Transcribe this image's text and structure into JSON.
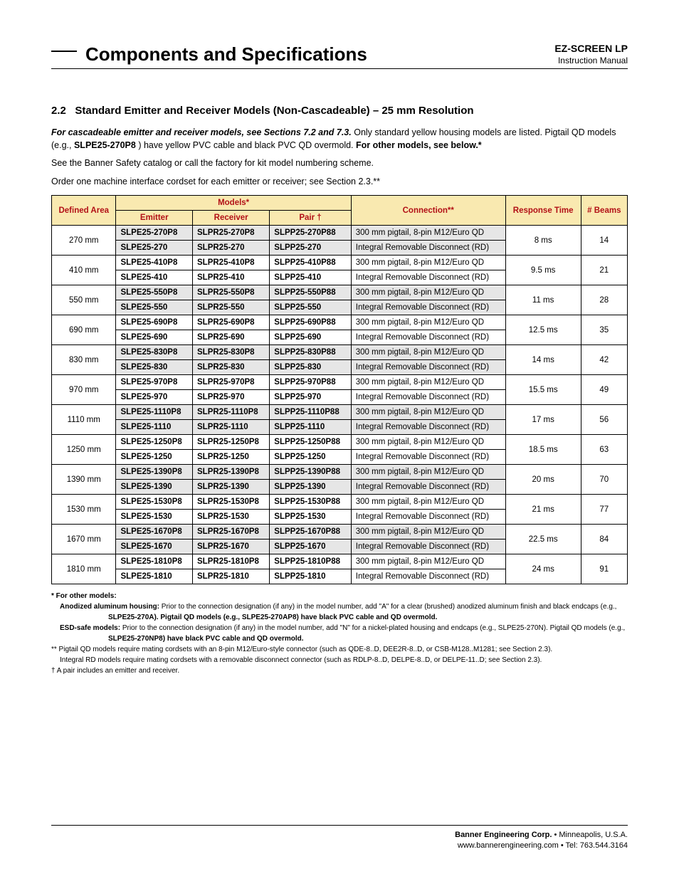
{
  "header": {
    "title": "Components and Specifications",
    "product": "EZ-SCREEN LP",
    "subtitle": "Instruction Manual"
  },
  "section": {
    "number": "2.2",
    "title": "Standard Emitter and Receiver Models (Non-Cascadeable) – 25 mm Resolution"
  },
  "intro": {
    "p1a": "For cascadeable emitter and receiver models, see Sections 7.2 and 7.3.",
    "p1b": " Only standard yellow housing models are listed. Pigtail QD models (e.g., ",
    "p1c": "SLPE25-270P8",
    "p1d": ") have yellow PVC cable and black PVC QD overmold. ",
    "p1e": "For other models, see below.*",
    "p2": "See the Banner Safety catalog or call the factory for kit model numbering scheme.",
    "p3": "Order one machine interface cordset for each emitter or receiver; see Section 2.3.**"
  },
  "table": {
    "headers": {
      "area": "Defined Area",
      "models": "Models*",
      "emitter": "Emitter",
      "receiver": "Receiver",
      "pair": "Pair †",
      "connection": "Connection**",
      "response": "Response Time",
      "beams": "# Beams"
    },
    "conn_pigtail": "300 mm pigtail, 8-pin M12/Euro QD",
    "conn_rd": "Integral Removable Disconnect (RD)",
    "rows": [
      {
        "area": "270 mm",
        "e1": "SLPE25-270P8",
        "r1": "SLPR25-270P8",
        "p1": "SLPP25-270P88",
        "e2": "SLPE25-270",
        "r2": "SLPR25-270",
        "p2": "SLPP25-270",
        "rt": "8 ms",
        "b": "14"
      },
      {
        "area": "410 mm",
        "e1": "SLPE25-410P8",
        "r1": "SLPR25-410P8",
        "p1": "SLPP25-410P88",
        "e2": "SLPE25-410",
        "r2": "SLPR25-410",
        "p2": "SLPP25-410",
        "rt": "9.5 ms",
        "b": "21"
      },
      {
        "area": "550 mm",
        "e1": "SLPE25-550P8",
        "r1": "SLPR25-550P8",
        "p1": "SLPP25-550P88",
        "e2": "SLPE25-550",
        "r2": "SLPR25-550",
        "p2": "SLPP25-550",
        "rt": "11 ms",
        "b": "28"
      },
      {
        "area": "690 mm",
        "e1": "SLPE25-690P8",
        "r1": "SLPR25-690P8",
        "p1": "SLPP25-690P88",
        "e2": "SLPE25-690",
        "r2": "SLPR25-690",
        "p2": "SLPP25-690",
        "rt": "12.5 ms",
        "b": "35"
      },
      {
        "area": "830 mm",
        "e1": "SLPE25-830P8",
        "r1": "SLPR25-830P8",
        "p1": "SLPP25-830P88",
        "e2": "SLPE25-830",
        "r2": "SLPR25-830",
        "p2": "SLPP25-830",
        "rt": "14 ms",
        "b": "42"
      },
      {
        "area": "970 mm",
        "e1": "SLPE25-970P8",
        "r1": "SLPR25-970P8",
        "p1": "SLPP25-970P88",
        "e2": "SLPE25-970",
        "r2": "SLPR25-970",
        "p2": "SLPP25-970",
        "rt": "15.5 ms",
        "b": "49"
      },
      {
        "area": "1110 mm",
        "e1": "SLPE25-1110P8",
        "r1": "SLPR25-1110P8",
        "p1": "SLPP25-1110P88",
        "e2": "SLPE25-1110",
        "r2": "SLPR25-1110",
        "p2": "SLPP25-1110",
        "rt": "17 ms",
        "b": "56"
      },
      {
        "area": "1250 mm",
        "e1": "SLPE25-1250P8",
        "r1": "SLPR25-1250P8",
        "p1": "SLPP25-1250P88",
        "e2": "SLPE25-1250",
        "r2": "SLPR25-1250",
        "p2": "SLPP25-1250",
        "rt": "18.5 ms",
        "b": "63"
      },
      {
        "area": "1390 mm",
        "e1": "SLPE25-1390P8",
        "r1": "SLPR25-1390P8",
        "p1": "SLPP25-1390P88",
        "e2": "SLPE25-1390",
        "r2": "SLPR25-1390",
        "p2": "SLPP25-1390",
        "rt": "20 ms",
        "b": "70"
      },
      {
        "area": "1530 mm",
        "e1": "SLPE25-1530P8",
        "r1": "SLPR25-1530P8",
        "p1": "SLPP25-1530P88",
        "e2": "SLPE25-1530",
        "r2": "SLPR25-1530",
        "p2": "SLPP25-1530",
        "rt": "21 ms",
        "b": "77"
      },
      {
        "area": "1670 mm",
        "e1": "SLPE25-1670P8",
        "r1": "SLPR25-1670P8",
        "p1": "SLPP25-1670P88",
        "e2": "SLPE25-1670",
        "r2": "SLPR25-1670",
        "p2": "SLPP25-1670",
        "rt": "22.5 ms",
        "b": "84"
      },
      {
        "area": "1810 mm",
        "e1": "SLPE25-1810P8",
        "r1": "SLPR25-1810P8",
        "p1": "SLPP25-1810P88",
        "e2": "SLPE25-1810",
        "r2": "SLPR25-1810",
        "p2": "SLPP25-1810",
        "rt": "24 ms",
        "b": "91"
      }
    ]
  },
  "footnotes": {
    "f1": "* For other models:",
    "f2a": "Anodized aluminum housing:",
    "f2b": "  Prior to the connection designation (if any) in the model number, add \"A\" for a clear (brushed) anodized aluminum finish and black endcaps (e.g.,",
    "f2c": "SLPE25-270A). Pigtail QD models (e.g., SLPE25-270AP8) have black PVC cable and QD overmold.",
    "f3a": "ESD-safe models:",
    "f3b": " Prior to the connection designation (if any) in the model number,  add \"N\" for a nickel-plated housing and endcaps (e.g., SLPE25-270N). Pigtail QD models (e.g.,",
    "f3c": "SLPE25-270NP8) have black PVC cable and QD overmold.",
    "f4": "** Pigtail QD models require mating cordsets with an 8-pin M12/Euro-style connector (such as QDE-8..D, DEE2R-8..D, or CSB-M128..M1281; see Section 2.3).",
    "f5": "Integral RD models require mating cordsets with a removable disconnect connector (such as RDLP-8..D, DELPE-8..D, or DELPE-11..D; see Section 2.3).",
    "f6": "†  A pair includes an emitter and receiver."
  },
  "footer": {
    "line1a": "Banner Engineering Corp. ",
    "line1b": "• Minneapolis, U.S.A.",
    "line2": "www.bannerengineering.com  •  Tel: 763.544.3164"
  },
  "colors": {
    "header_bg": "#f9e9b0",
    "header_text": "#b21016",
    "shade_bg": "#e6e6e6"
  }
}
